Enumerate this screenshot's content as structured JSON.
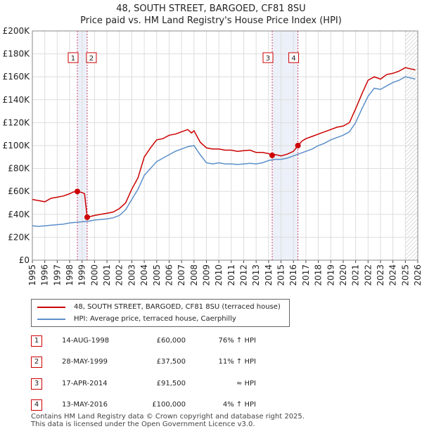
{
  "chart_data": {
    "type": "line",
    "title": "48, SOUTH STREET, BARGOED, CF81 8SU",
    "subtitle": "Price paid vs. HM Land Registry's House Price Index (HPI)",
    "ylim": [
      0,
      200000
    ],
    "xlim": [
      1995,
      2026
    ],
    "y_ticks": [
      0,
      20000,
      40000,
      60000,
      80000,
      100000,
      120000,
      140000,
      160000,
      180000,
      200000
    ],
    "y_tick_labels": [
      "£0",
      "£20K",
      "£40K",
      "£60K",
      "£80K",
      "£100K",
      "£120K",
      "£140K",
      "£160K",
      "£180K",
      "£200K"
    ],
    "x_ticks": [
      1995,
      1996,
      1997,
      1998,
      1999,
      2000,
      2001,
      2002,
      2003,
      2004,
      2005,
      2006,
      2007,
      2008,
      2009,
      2010,
      2011,
      2012,
      2013,
      2014,
      2015,
      2016,
      2017,
      2018,
      2019,
      2020,
      2021,
      2022,
      2023,
      2024,
      2025,
      2026
    ],
    "x_tick_labels": [
      "1995",
      "1996",
      "1997",
      "1998",
      "1999",
      "2000",
      "2001",
      "2002",
      "2003",
      "2004",
      "2005",
      "2006",
      "2007",
      "2008",
      "2009",
      "2010",
      "2011",
      "2012",
      "2013",
      "2014",
      "2015",
      "2016",
      "2017",
      "2018",
      "2019",
      "2020",
      "2021",
      "2022",
      "2023",
      "2024",
      "2025",
      "2026"
    ],
    "grid": true,
    "hatch_from": 2025.0,
    "series": [
      {
        "name": "48, SOUTH STREET, BARGOED, CF81 8SU (terraced house)",
        "color": "#cc0000",
        "x": [
          1995.0,
          1995.5,
          1996.0,
          1996.5,
          1997.0,
          1997.5,
          1998.0,
          1998.3,
          1998.62,
          1999.0,
          1999.2,
          1999.41,
          1999.6,
          2000.0,
          2000.5,
          2001.0,
          2001.5,
          2002.0,
          2002.5,
          2003.0,
          2003.5,
          2004.0,
          2004.5,
          2005.0,
          2005.5,
          2006.0,
          2006.5,
          2007.0,
          2007.5,
          2007.8,
          2008.0,
          2008.5,
          2009.0,
          2009.5,
          2010.0,
          2010.5,
          2011.0,
          2011.5,
          2012.0,
          2012.5,
          2013.0,
          2013.5,
          2014.0,
          2014.29,
          2014.6,
          2015.0,
          2015.5,
          2016.0,
          2016.36,
          2016.7,
          2017.0,
          2017.5,
          2018.0,
          2018.5,
          2019.0,
          2019.5,
          2020.0,
          2020.5,
          2021.0,
          2021.5,
          2022.0,
          2022.5,
          2023.0,
          2023.5,
          2024.0,
          2024.5,
          2025.0,
          2025.4,
          2025.8
        ],
        "values": [
          53000,
          52000,
          51000,
          54000,
          55000,
          56000,
          58000,
          59500,
          60000,
          59000,
          58000,
          37500,
          38000,
          39000,
          40000,
          41000,
          42000,
          45000,
          50000,
          62000,
          72000,
          90000,
          98000,
          105000,
          106000,
          109000,
          110000,
          112000,
          114000,
          111000,
          113000,
          103000,
          98000,
          97000,
          97000,
          96000,
          96000,
          95000,
          95500,
          96000,
          94000,
          94000,
          93000,
          91500,
          92000,
          91000,
          92500,
          95000,
          100000,
          104000,
          106000,
          108000,
          110000,
          112000,
          114000,
          116000,
          117000,
          120000,
          132000,
          145000,
          157000,
          160000,
          158000,
          162000,
          163000,
          165000,
          168000,
          167000,
          166000
        ]
      },
      {
        "name": "HPI: Average price, terraced house, Caerphilly",
        "color": "#5b8fc9",
        "x": [
          1995.0,
          1995.5,
          1996.0,
          1996.5,
          1997.0,
          1997.5,
          1998.0,
          1998.5,
          1999.0,
          1999.5,
          2000.0,
          2000.5,
          2001.0,
          2001.5,
          2002.0,
          2002.5,
          2003.0,
          2003.5,
          2004.0,
          2004.5,
          2005.0,
          2005.5,
          2006.0,
          2006.5,
          2007.0,
          2007.5,
          2008.0,
          2008.5,
          2009.0,
          2009.5,
          2010.0,
          2010.5,
          2011.0,
          2011.5,
          2012.0,
          2012.5,
          2013.0,
          2013.5,
          2014.0,
          2014.5,
          2015.0,
          2015.5,
          2016.0,
          2016.5,
          2017.0,
          2017.5,
          2018.0,
          2018.5,
          2019.0,
          2019.5,
          2020.0,
          2020.5,
          2021.0,
          2021.5,
          2022.0,
          2022.5,
          2023.0,
          2023.5,
          2024.0,
          2024.5,
          2025.0,
          2025.4,
          2025.8
        ],
        "values": [
          30000,
          29500,
          30000,
          30500,
          31000,
          31500,
          32500,
          33000,
          33500,
          34000,
          35000,
          35500,
          36000,
          37000,
          39000,
          44000,
          53000,
          62000,
          74000,
          80000,
          86000,
          89000,
          92000,
          95000,
          97000,
          99000,
          100000,
          92000,
          85000,
          84000,
          85000,
          84000,
          84000,
          83500,
          84000,
          84500,
          84000,
          85000,
          87000,
          88000,
          88000,
          89000,
          91000,
          93000,
          95000,
          97000,
          100000,
          102000,
          105000,
          107000,
          109000,
          112000,
          120000,
          132000,
          143000,
          150000,
          149000,
          152000,
          155000,
          157000,
          160000,
          159000,
          158000
        ]
      }
    ],
    "transactions": [
      {
        "label": "1",
        "x": 1998.62,
        "value": 60000,
        "date": "14-AUG-1998",
        "price": "£60,000",
        "hpi": "76% ↑ HPI"
      },
      {
        "label": "2",
        "x": 1999.41,
        "value": 37500,
        "date": "28-MAY-1999",
        "price": "£37,500",
        "hpi": "11% ↑ HPI"
      },
      {
        "label": "3",
        "x": 2014.29,
        "value": 91500,
        "date": "17-APR-2014",
        "price": "£91,500",
        "hpi": "≈ HPI"
      },
      {
        "label": "4",
        "x": 2016.36,
        "value": 100000,
        "date": "13-MAY-2016",
        "price": "£100,000",
        "hpi": "4% ↑ HPI"
      }
    ]
  },
  "legend": {
    "property_label": "48, SOUTH STREET, BARGOED, CF81 8SU (terraced house)",
    "hpi_label": "HPI: Average price, terraced house, Caerphilly"
  },
  "footer": {
    "text": "Contains HM Land Registry data © Crown copyright and database right 2025.\nThis data is licensed under the Open Government Licence v3.0."
  },
  "colors": {
    "property": "#cc0000",
    "hpi": "#5b8fc9",
    "marker_line": "#cc4466",
    "shade": "#dfe6f3"
  }
}
